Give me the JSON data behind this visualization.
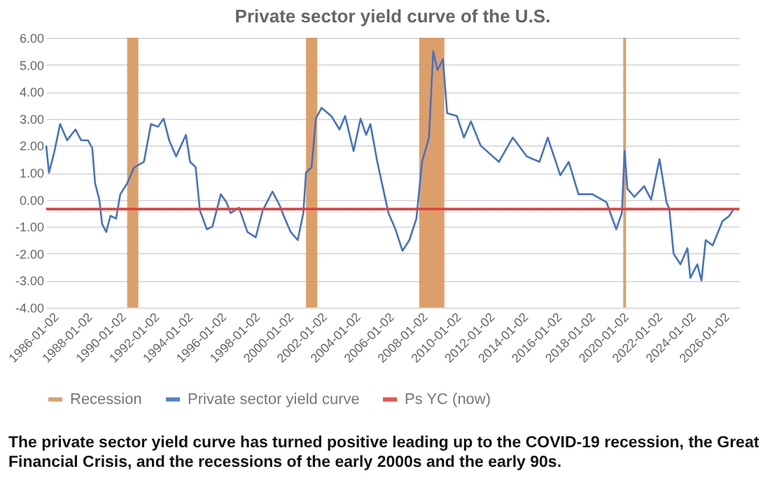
{
  "chart_data": {
    "type": "line",
    "title": "Private sector yield curve of the U.S.",
    "annotations": [
      "The private sector yield curve has turned positive leading up to the COVID-19 recession, the Great Financial Crisis, and the recessions of the early 2000s and the early 90s."
    ],
    "x": [
      "1985-09",
      "1985-11",
      "1986-03",
      "1986-07",
      "1986-12",
      "1987-06",
      "1987-10",
      "1988-03",
      "1988-06",
      "1988-08",
      "1988-11",
      "1989-01",
      "1989-04",
      "1989-07",
      "1989-11",
      "1990-02",
      "1990-07",
      "1990-12",
      "1991-07",
      "1991-12",
      "1992-05",
      "1992-09",
      "1993-01",
      "1993-06",
      "1994-01",
      "1994-04",
      "1994-08",
      "1994-11",
      "1995-04",
      "1995-08",
      "1996-02",
      "1996-06",
      "1996-09",
      "1997-03",
      "1997-09",
      "1998-03",
      "1998-08",
      "1999-03",
      "1999-08",
      "1999-11",
      "2000-04",
      "2000-09",
      "2001-01",
      "2001-03",
      "2001-07",
      "2001-10",
      "2002-02",
      "2002-09",
      "2003-03",
      "2003-07",
      "2004-01",
      "2004-06",
      "2004-10",
      "2005-01",
      "2005-06",
      "2005-11",
      "2006-02",
      "2006-07",
      "2006-12",
      "2007-05",
      "2007-10",
      "2008-02",
      "2008-07",
      "2008-10",
      "2009-01",
      "2009-05",
      "2009-08",
      "2010-03",
      "2010-08",
      "2011-01",
      "2011-08",
      "2012-09",
      "2013-07",
      "2014-05",
      "2015-02",
      "2015-08",
      "2016-05",
      "2016-11",
      "2017-06",
      "2018-04",
      "2019-02",
      "2019-09",
      "2020-01",
      "2020-03",
      "2020-05",
      "2020-10",
      "2021-05",
      "2021-10",
      "2022-04",
      "2022-09",
      "2022-11",
      "2023-02",
      "2023-07",
      "2023-12",
      "2024-02",
      "2024-07",
      "2024-10",
      "2025-01",
      "2025-06",
      "2026-01",
      "2026-06",
      "2026-09"
    ],
    "series": [
      {
        "name": "Private sector yield curve",
        "color": "#4472c4",
        "values": [
          2.0,
          1.0,
          1.8,
          2.8,
          2.2,
          2.6,
          2.2,
          2.2,
          1.9,
          0.6,
          0.0,
          -0.9,
          -1.2,
          -0.6,
          -0.7,
          0.2,
          0.6,
          1.2,
          1.4,
          2.8,
          2.7,
          3.0,
          2.2,
          1.6,
          2.4,
          1.4,
          1.2,
          -0.4,
          -1.1,
          -1.0,
          0.2,
          -0.1,
          -0.5,
          -0.3,
          -1.2,
          -1.4,
          -0.4,
          0.3,
          -0.2,
          -0.6,
          -1.2,
          -1.5,
          -0.5,
          1.0,
          1.2,
          3.0,
          3.4,
          3.1,
          2.6,
          3.1,
          1.8,
          3.0,
          2.4,
          2.8,
          1.4,
          0.2,
          -0.5,
          -1.1,
          -1.9,
          -1.5,
          -0.7,
          1.4,
          2.3,
          5.5,
          4.8,
          5.2,
          3.2,
          3.1,
          2.3,
          2.9,
          2.0,
          1.4,
          2.3,
          1.6,
          1.4,
          2.3,
          0.9,
          1.4,
          0.2,
          0.2,
          -0.1,
          -1.1,
          -0.5,
          1.8,
          0.4,
          0.1,
          0.5,
          0.0,
          1.5,
          -0.1,
          -0.35,
          -2.0,
          -2.4,
          -1.8,
          -2.9,
          -2.4,
          -3.0,
          -1.5,
          -1.7,
          -0.8,
          -0.6,
          -0.35
        ]
      }
    ],
    "xlim": [
      "1985-09-01",
      "2027-01-01"
    ],
    "xticks": [
      "1986-01-02",
      "1988-01-02",
      "1990-01-02",
      "1992-01-02",
      "1994-01-02",
      "1996-01-02",
      "1998-01-02",
      "2000-01-02",
      "2002-01-02",
      "2004-01-02",
      "2006-01-02",
      "2008-01-02",
      "2010-01-02",
      "2012-01-02",
      "2014-01-02",
      "2016-01-02",
      "2018-01-02",
      "2020-01-02",
      "2022-01-02",
      "2024-01-02",
      "2026-01-02"
    ],
    "ylim": [
      -4,
      6
    ],
    "yticks": [
      {
        "value": -4,
        "label": "-4.00"
      },
      {
        "value": -3,
        "label": "-3.00"
      },
      {
        "value": -2,
        "label": "-2.00"
      },
      {
        "value": -1,
        "label": "-1.00"
      },
      {
        "value": 0,
        "label": "0.00"
      },
      {
        "value": 1,
        "label": "1.00"
      },
      {
        "value": 2,
        "label": "2.00"
      },
      {
        "value": 3,
        "label": "3.00"
      },
      {
        "value": 4,
        "label": "4.00"
      },
      {
        "value": 5,
        "label": "5.00"
      },
      {
        "value": 6,
        "label": "6.00"
      }
    ],
    "bands": [
      {
        "axis": "x",
        "from": "1990-07",
        "to": "1991-03",
        "label": "Recession",
        "color": "#d9955a"
      },
      {
        "axis": "x",
        "from": "2001-03",
        "to": "2001-11",
        "color": "#d9955a"
      },
      {
        "axis": "x",
        "from": "2007-12",
        "to": "2009-06",
        "color": "#d9955a"
      },
      {
        "axis": "x",
        "from": "2020-02",
        "to": "2020-04",
        "color": "#d9955a"
      }
    ],
    "ref_lines": [
      {
        "axis": "y",
        "value": -0.35,
        "label": "Ps YC (now)",
        "color": "#e8413c"
      }
    ],
    "grid": "y",
    "legend": "bottom"
  }
}
